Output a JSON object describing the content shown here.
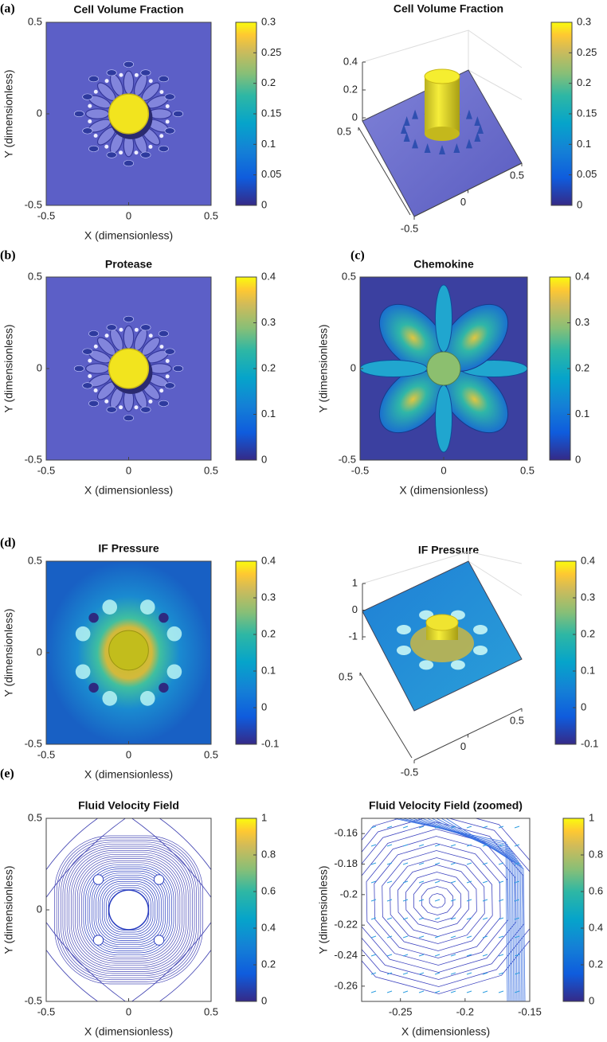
{
  "chart_data": [
    {
      "type": "heatmap",
      "label": "(a)",
      "title": "Cell Volume Fraction",
      "x_label": "X (dimensionless)",
      "y_label": "Y (dimensionless)",
      "xlim": [
        -0.5,
        0.5
      ],
      "ylim": [
        -0.5,
        0.5
      ],
      "xticks": [
        -0.5,
        0,
        0.5
      ],
      "yticks": [
        -0.5,
        0,
        0.5
      ],
      "colorbar": {
        "lim": [
          0,
          0.3
        ],
        "ticks": [
          0,
          0.05,
          0.1,
          0.15,
          0.2,
          0.25,
          0.3
        ]
      }
    },
    {
      "type": "surface",
      "title": "Cell Volume Fraction",
      "xlim": [
        -0.5,
        0.5
      ],
      "ylim": [
        -0.5,
        0.5
      ],
      "zlim": [
        0,
        0.4
      ],
      "xticks": [
        -0.5,
        0,
        0.5
      ],
      "yticks": [
        0.5
      ],
      "zticks": [
        0,
        0.2,
        0.4
      ],
      "colorbar": {
        "lim": [
          0,
          0.3
        ],
        "ticks": [
          0,
          0.05,
          0.1,
          0.15,
          0.2,
          0.25,
          0.3
        ]
      }
    },
    {
      "type": "heatmap",
      "label": "(b)",
      "title": "Protease",
      "x_label": "X (dimensionless)",
      "y_label": "Y (dimensionless)",
      "xlim": [
        -0.5,
        0.5
      ],
      "ylim": [
        -0.5,
        0.5
      ],
      "xticks": [
        -0.5,
        0,
        0.5
      ],
      "yticks": [
        -0.5,
        0,
        0.5
      ],
      "colorbar": {
        "lim": [
          0,
          0.4
        ],
        "ticks": [
          0,
          0.1,
          0.2,
          0.3,
          0.4
        ]
      }
    },
    {
      "type": "heatmap",
      "label": "(c)",
      "title": "Chemokine",
      "x_label": "X (dimensionless)",
      "y_label": "Y (dimensionless)",
      "xlim": [
        -0.5,
        0.5
      ],
      "ylim": [
        -0.5,
        0.5
      ],
      "xticks": [
        -0.5,
        0,
        0.5
      ],
      "yticks": [
        -0.5,
        0,
        0.5
      ],
      "colorbar": {
        "lim": [
          0,
          0.4
        ],
        "ticks": [
          0,
          0.1,
          0.2,
          0.3,
          0.4
        ]
      }
    },
    {
      "type": "heatmap",
      "label": "(d)",
      "title": "IF Pressure",
      "x_label": "X (dimensionless)",
      "y_label": "Y (dimensionless)",
      "xlim": [
        -0.5,
        0.5
      ],
      "ylim": [
        -0.5,
        0.5
      ],
      "xticks": [
        -0.5,
        0,
        0.5
      ],
      "yticks": [
        -0.5,
        0,
        0.5
      ],
      "colorbar": {
        "lim": [
          -0.1,
          0.4
        ],
        "ticks": [
          -0.1,
          0,
          0.1,
          0.2,
          0.3,
          0.4
        ]
      }
    },
    {
      "type": "surface",
      "title": "IF Pressure",
      "xlim": [
        -0.5,
        0.5
      ],
      "ylim": [
        -0.5,
        0.5
      ],
      "zlim": [
        -1,
        1
      ],
      "xticks": [
        -0.5,
        0,
        0.5
      ],
      "yticks": [
        0.5
      ],
      "zticks": [
        -1,
        0,
        1
      ],
      "colorbar": {
        "lim": [
          -0.1,
          0.4
        ],
        "ticks": [
          -0.1,
          0,
          0.1,
          0.2,
          0.3,
          0.4
        ]
      }
    },
    {
      "type": "contour",
      "label": "(e)",
      "title": "Fluid Velocity Field",
      "x_label": "X (dimensionless)",
      "y_label": "Y (dimensionless)",
      "xlim": [
        -0.5,
        0.5
      ],
      "ylim": [
        -0.5,
        0.5
      ],
      "xticks": [
        -0.5,
        0,
        0.5
      ],
      "yticks": [
        -0.5,
        0,
        0.5
      ],
      "colorbar": {
        "lim": [
          0,
          1
        ],
        "ticks": [
          0,
          0.2,
          0.4,
          0.6,
          0.8,
          1
        ]
      }
    },
    {
      "type": "quiver",
      "title": "Fluid Velocity Field (zoomed)",
      "x_label": "X (dimensionless)",
      "y_label": "Y (dimensionless)",
      "xlim": [
        -0.28,
        -0.15
      ],
      "ylim": [
        -0.27,
        -0.15
      ],
      "xticks": [
        -0.25,
        -0.2,
        -0.15
      ],
      "yticks": [
        -0.26,
        -0.24,
        -0.22,
        -0.2,
        -0.18,
        -0.16
      ],
      "colorbar": {
        "lim": [
          0,
          1
        ],
        "ticks": [
          0,
          0.2,
          0.4,
          0.6,
          0.8,
          1
        ]
      }
    }
  ]
}
